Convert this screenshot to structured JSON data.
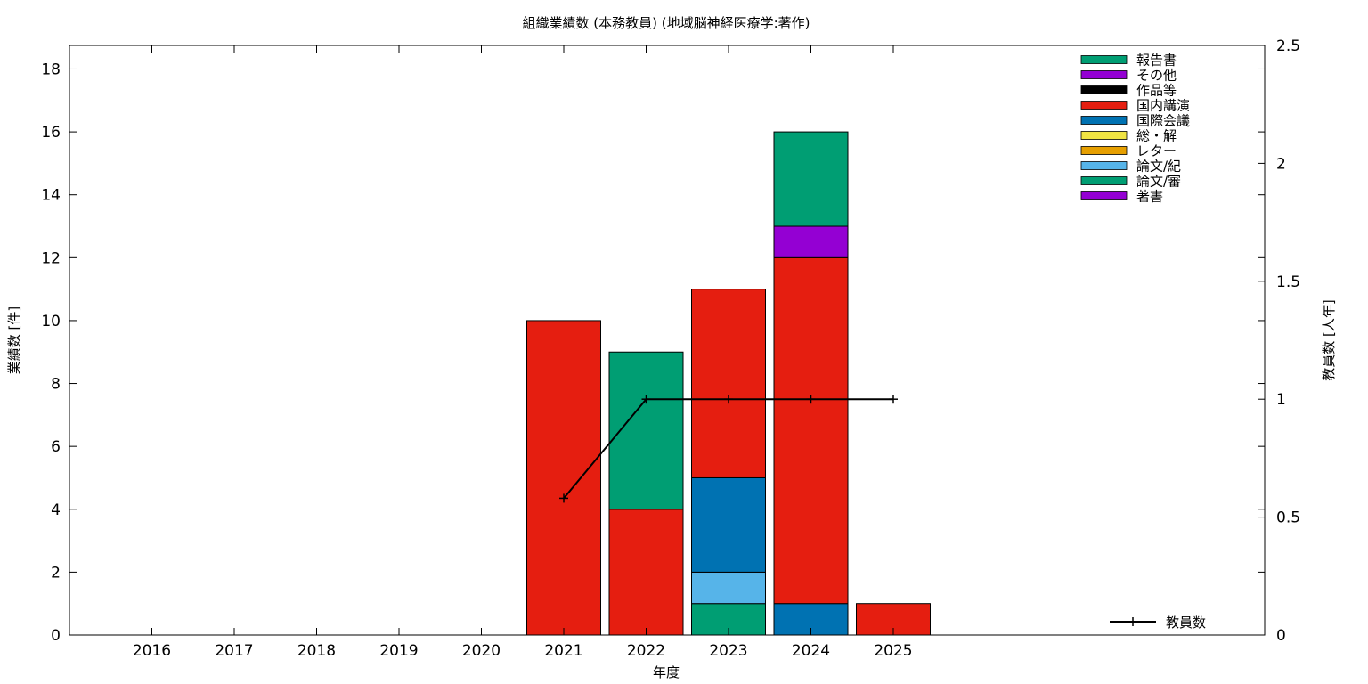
{
  "chart_data": {
    "type": "bar",
    "title": "組織業績数 (本務教員) (地域脳神経医療学:著作)",
    "xlabel": "年度",
    "ylabel": "業績数 [件]",
    "y2label": "教員数 [人年]",
    "categories": [
      "2016",
      "2017",
      "2018",
      "2019",
      "2020",
      "2021",
      "2022",
      "2023",
      "2024",
      "2025"
    ],
    "ylim": [
      0,
      18.75
    ],
    "yticks": [
      "0",
      "2",
      "4",
      "6",
      "8",
      "10",
      "12",
      "14",
      "16",
      "18"
    ],
    "y2lim": [
      0,
      2.5
    ],
    "y2ticks": [
      "0",
      "0.5",
      "1",
      "1.5",
      "2",
      "2.5"
    ],
    "stacked": true,
    "grid": false,
    "legend_position": "top-right",
    "series": [
      {
        "name": "著書",
        "color": "#9400d3",
        "values": [
          0,
          0,
          0,
          0,
          0,
          0,
          0,
          0,
          0,
          0
        ]
      },
      {
        "name": "論文/審",
        "color": "#009e73",
        "values": [
          0,
          0,
          0,
          0,
          0,
          0,
          0,
          1,
          0,
          0
        ]
      },
      {
        "name": "論文/紀",
        "color": "#56b4e9",
        "values": [
          0,
          0,
          0,
          0,
          0,
          0,
          0,
          1,
          0,
          0
        ]
      },
      {
        "name": "レター",
        "color": "#e69f00",
        "values": [
          0,
          0,
          0,
          0,
          0,
          0,
          0,
          0,
          0,
          0
        ]
      },
      {
        "name": "総・解",
        "color": "#f0e442",
        "values": [
          0,
          0,
          0,
          0,
          0,
          0,
          0,
          0,
          0,
          0
        ]
      },
      {
        "name": "国際会議",
        "color": "#0072b2",
        "values": [
          0,
          0,
          0,
          0,
          0,
          0,
          0,
          3,
          1,
          0
        ]
      },
      {
        "name": "国内講演",
        "color": "#e51e10",
        "values": [
          0,
          0,
          0,
          0,
          0,
          10,
          4,
          6,
          11,
          1
        ]
      },
      {
        "name": "作品等",
        "color": "#000000",
        "values": [
          0,
          0,
          0,
          0,
          0,
          0,
          0,
          0,
          0,
          0
        ]
      },
      {
        "name": "その他",
        "color": "#9400d3",
        "values": [
          0,
          0,
          0,
          0,
          0,
          0,
          0,
          0,
          1,
          0
        ]
      },
      {
        "name": "報告書",
        "color": "#009e73",
        "values": [
          0,
          0,
          0,
          0,
          0,
          0,
          5,
          0,
          3,
          0
        ]
      }
    ],
    "line_series": {
      "name": "教員数",
      "color": "#000000",
      "axis": "y2",
      "x": [
        "2021",
        "2022",
        "2023",
        "2024",
        "2025"
      ],
      "values": [
        0.58,
        1,
        1,
        1,
        1
      ]
    }
  }
}
